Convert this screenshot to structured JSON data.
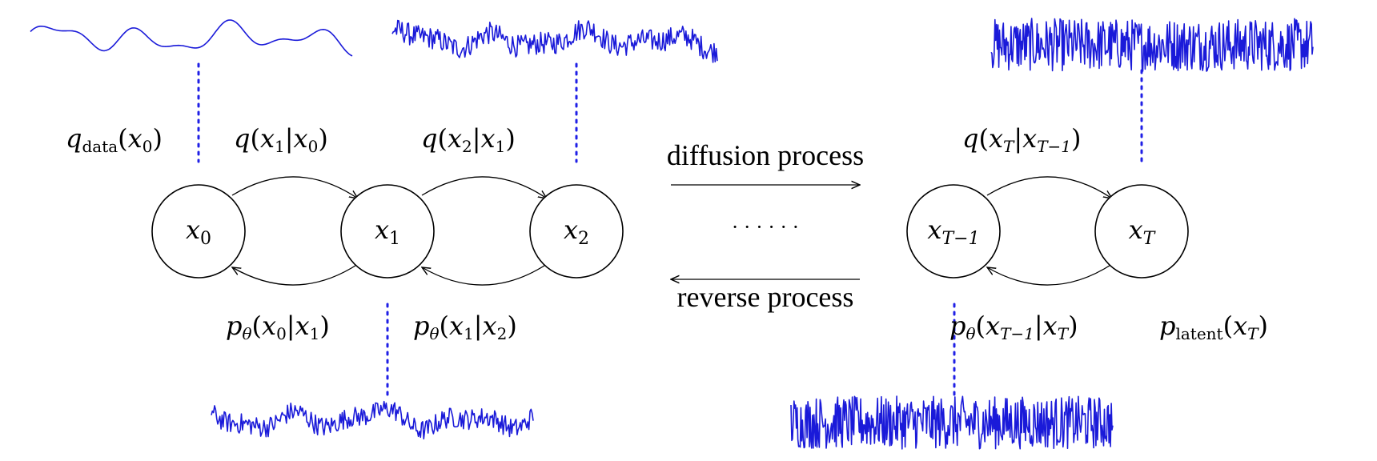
{
  "nodes": {
    "x0": {
      "base": "x",
      "sub": "0"
    },
    "x1": {
      "base": "x",
      "sub": "1"
    },
    "x2": {
      "base": "x",
      "sub": "2"
    },
    "xT1": {
      "base": "x",
      "sub": "T−1"
    },
    "xT": {
      "base": "x",
      "sub": "T"
    }
  },
  "ellipsis": "· · · · · ·",
  "process_labels": {
    "diffusion": "diffusion process",
    "reverse": "reverse process"
  },
  "forward_labels": {
    "q_data": {
      "fn": "q",
      "sub": "data",
      "arg": "(x",
      "argsub": "0",
      "close": ")"
    },
    "q1": {
      "text": "q(x",
      "s1": "1",
      "mid": "|x",
      "s2": "0",
      "close": ")"
    },
    "q2": {
      "text": "q(x",
      "s1": "2",
      "mid": "|x",
      "s2": "1",
      "close": ")"
    },
    "qT": {
      "text": "q(x",
      "s1": "T",
      "mid": "|x",
      "s2": "T−1",
      "close": ")"
    }
  },
  "reverse_labels": {
    "p1": {
      "fn": "p",
      "fsub": "θ",
      "text": "(x",
      "s1": "0",
      "mid": "|x",
      "s2": "1",
      "close": ")"
    },
    "p2": {
      "fn": "p",
      "fsub": "θ",
      "text": "(x",
      "s1": "1",
      "mid": "|x",
      "s2": "2",
      "close": ")"
    },
    "pT": {
      "fn": "p",
      "fsub": "θ",
      "text": "(x",
      "s1": "T−1",
      "mid": "|x",
      "s2": "T",
      "close": ")"
    },
    "p_latent": {
      "fn": "p",
      "fsub": "latent",
      "text": "(x",
      "s1": "T",
      "close": ")"
    }
  },
  "colors": {
    "wave": "#1a1ad9",
    "dots": "#1f1fe6",
    "ink": "#000000"
  },
  "waveforms": [
    {
      "id": "wave-data",
      "noise_level": 0.0
    },
    {
      "id": "wave-x2",
      "noise_level": 0.35
    },
    {
      "id": "wave-xT-top",
      "noise_level": 1.0
    },
    {
      "id": "wave-x1",
      "noise_level": 0.3
    },
    {
      "id": "wave-xT1-bottom",
      "noise_level": 1.0
    }
  ]
}
